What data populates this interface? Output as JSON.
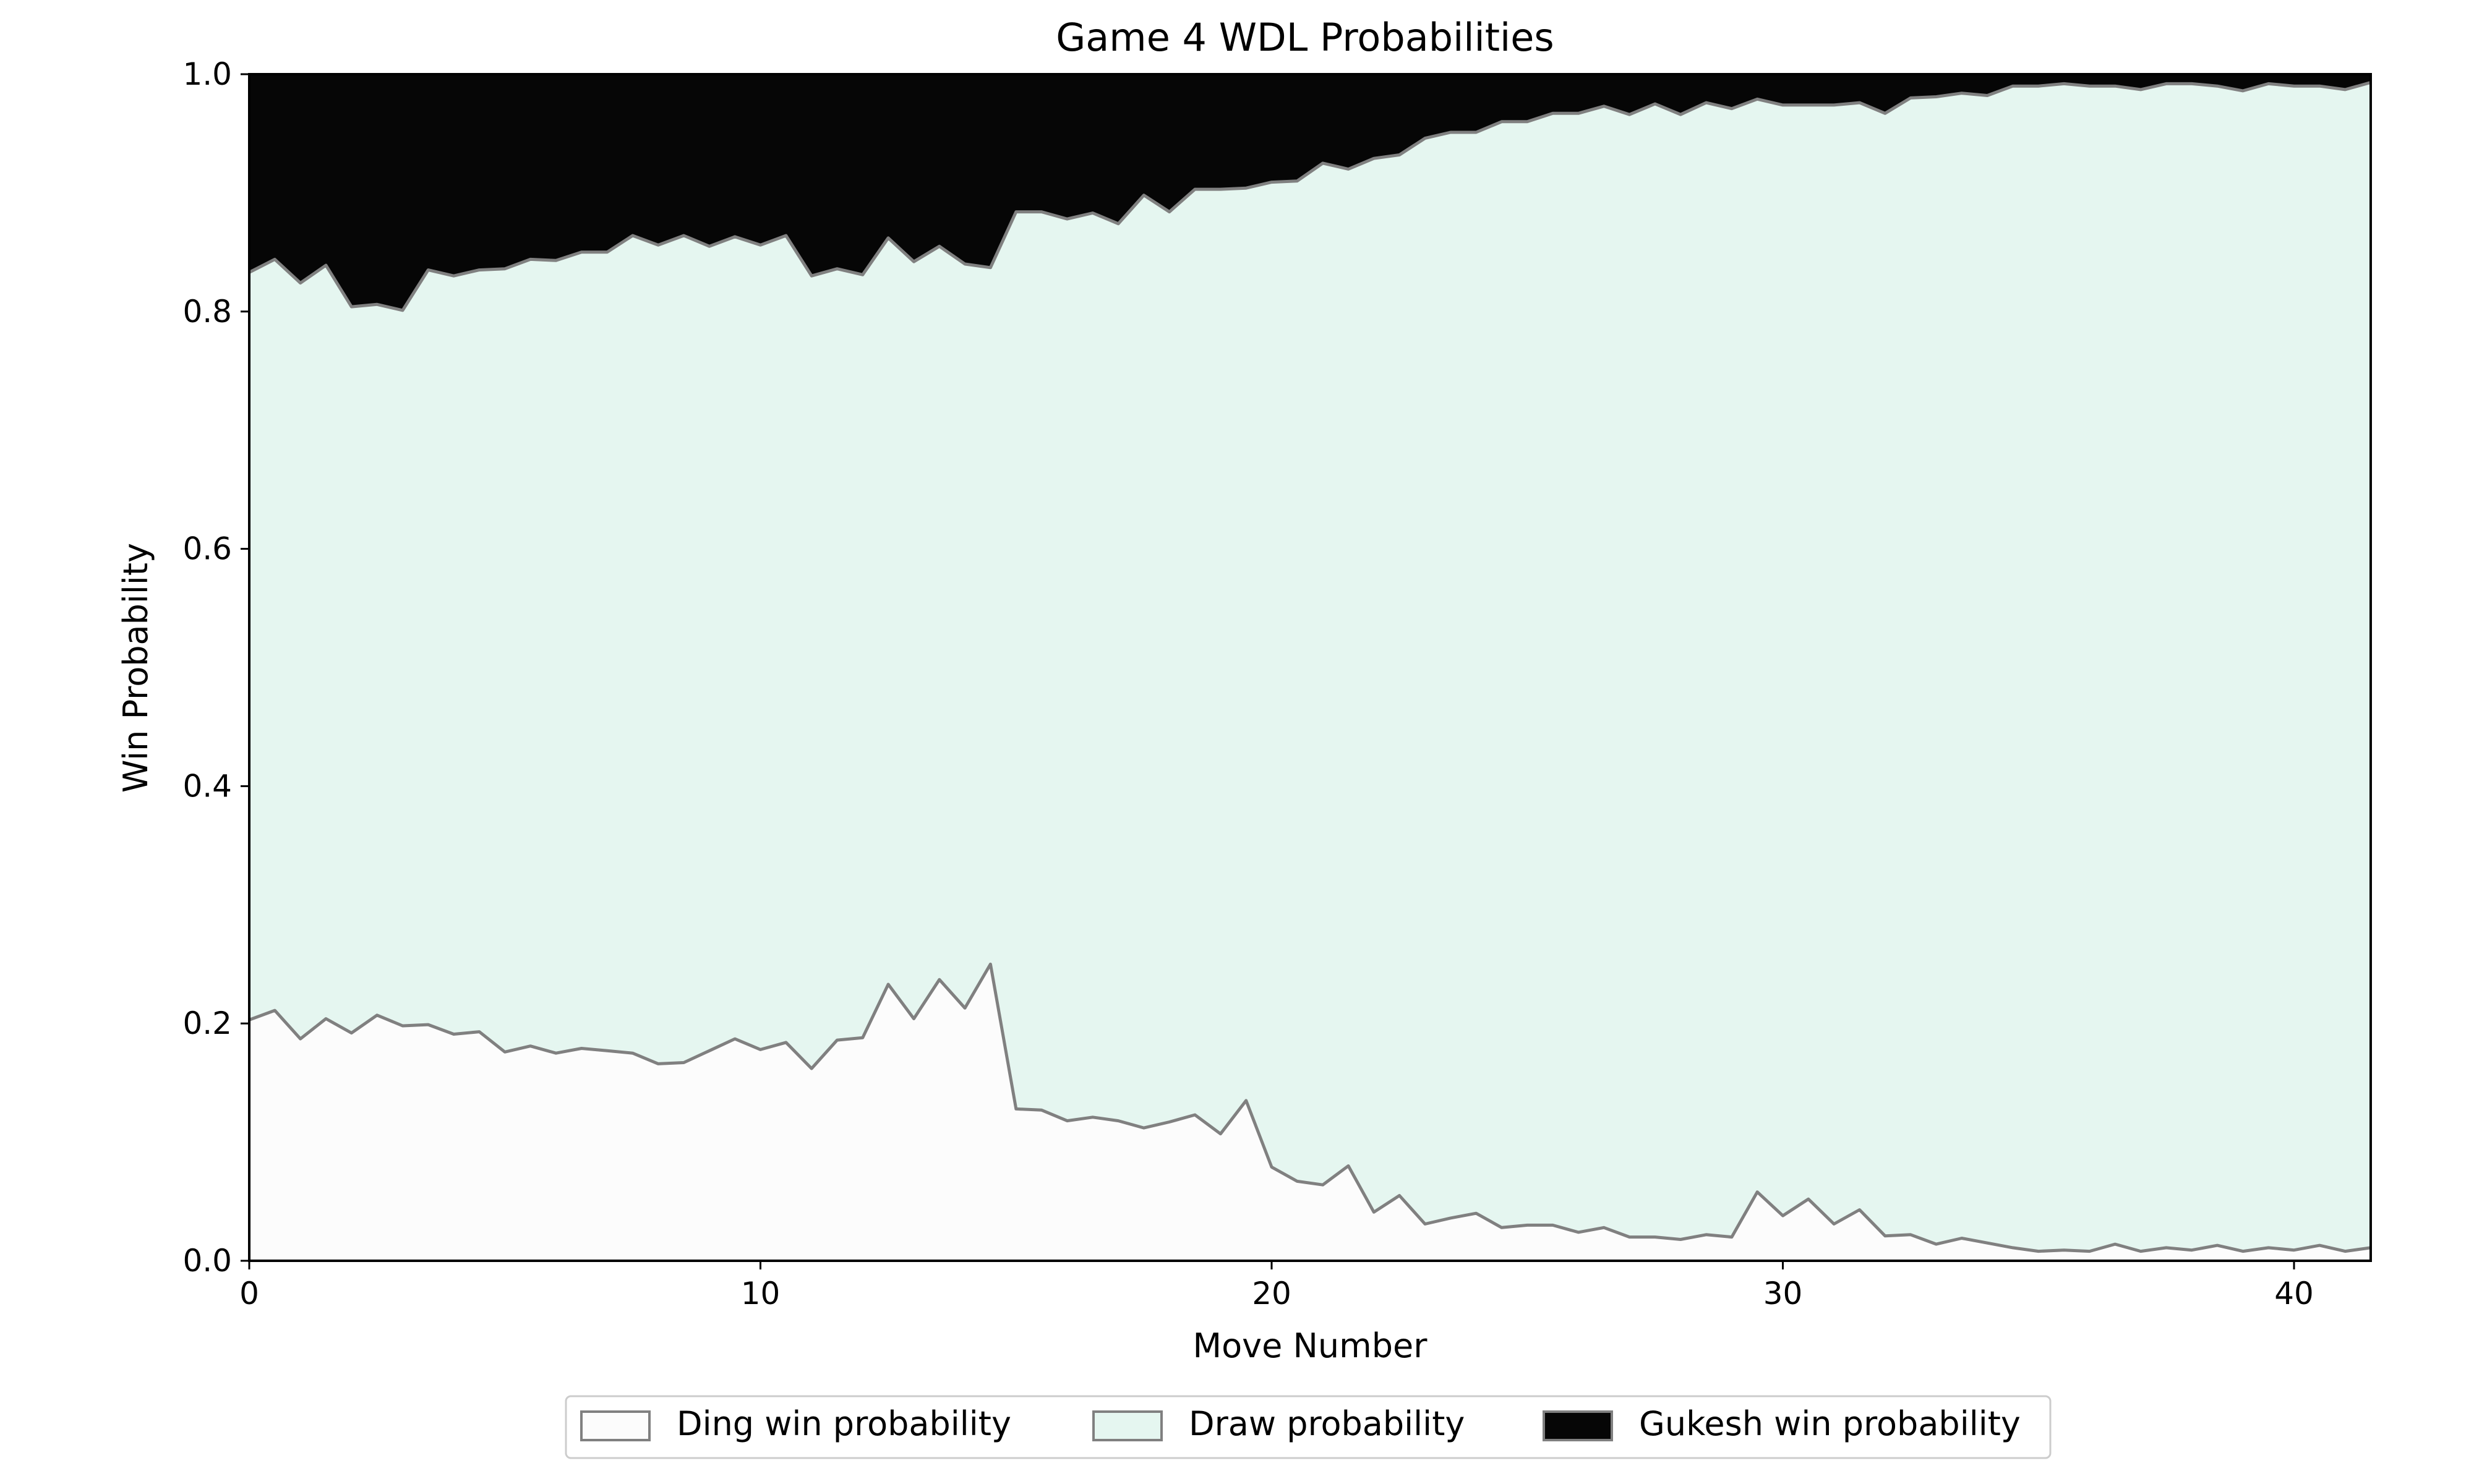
{
  "chart_data": {
    "type": "area",
    "stacked": true,
    "title": "Game 4 WDL Probabilities",
    "xlabel": "Move Number",
    "ylabel": "Win Probability",
    "xlim": [
      0,
      41.5
    ],
    "ylim": [
      0,
      1
    ],
    "xticks": [
      "0",
      "10",
      "20",
      "30",
      "40"
    ],
    "yticks": [
      "0.0",
      "0.2",
      "0.4",
      "0.6",
      "0.8",
      "1.0"
    ],
    "grid": false,
    "legend_position": "bottom-center",
    "x": [
      0,
      0.5,
      1,
      1.5,
      2,
      2.5,
      3,
      3.5,
      4,
      4.5,
      5,
      5.5,
      6,
      6.5,
      7,
      7.5,
      8,
      8.5,
      9,
      9.5,
      10,
      10.5,
      11,
      11.5,
      12,
      12.5,
      13,
      13.5,
      14,
      14.5,
      15,
      15.5,
      16,
      16.5,
      17,
      17.5,
      18,
      18.5,
      19,
      19.5,
      20,
      20.5,
      21,
      21.5,
      22,
      22.5,
      23,
      23.5,
      24,
      24.5,
      25,
      25.5,
      26,
      26.5,
      27,
      27.5,
      28,
      28.5,
      29,
      29.5,
      30,
      30.5,
      31,
      31.5,
      32,
      32.5,
      33,
      33.5,
      34,
      34.5,
      35,
      35.5,
      36,
      36.5,
      37,
      37.5,
      38,
      38.5,
      39,
      39.5,
      40,
      40.5,
      41,
      41.5
    ],
    "series": [
      {
        "name": "Ding win probability",
        "color": "#fcfcfc",
        "edge_color": "#808080",
        "values": [
          0.203,
          0.211,
          0.187,
          0.204,
          0.192,
          0.207,
          0.198,
          0.199,
          0.191,
          0.193,
          0.176,
          0.181,
          0.175,
          0.179,
          0.177,
          0.175,
          0.166,
          0.167,
          0.177,
          0.187,
          0.178,
          0.184,
          0.162,
          0.186,
          0.188,
          0.233,
          0.204,
          0.237,
          0.213,
          0.25,
          0.128,
          0.127,
          0.118,
          0.121,
          0.118,
          0.112,
          0.117,
          0.123,
          0.107,
          0.135,
          0.079,
          0.067,
          0.064,
          0.08,
          0.041,
          0.055,
          0.031,
          0.036,
          0.04,
          0.028,
          0.03,
          0.03,
          0.024,
          0.028,
          0.02,
          0.02,
          0.018,
          0.022,
          0.02,
          0.058,
          0.038,
          0.052,
          0.031,
          0.043,
          0.021,
          0.022,
          0.014,
          0.019,
          0.015,
          0.011,
          0.008,
          0.009,
          0.008,
          0.014,
          0.008,
          0.011,
          0.009,
          0.013,
          0.008,
          0.011,
          0.009,
          0.013,
          0.008,
          0.011
        ]
      },
      {
        "name": "Draw probability",
        "color": "#e5f6f0",
        "edge_color": "#808080",
        "values": [
          0.63,
          0.633,
          0.637,
          0.635,
          0.612,
          0.599,
          0.603,
          0.636,
          0.639,
          0.642,
          0.66,
          0.663,
          0.668,
          0.671,
          0.673,
          0.689,
          0.69,
          0.697,
          0.678,
          0.676,
          0.678,
          0.68,
          0.668,
          0.65,
          0.643,
          0.629,
          0.638,
          0.618,
          0.627,
          0.587,
          0.756,
          0.757,
          0.76,
          0.762,
          0.756,
          0.786,
          0.767,
          0.78,
          0.796,
          0.769,
          0.83,
          0.843,
          0.861,
          0.84,
          0.888,
          0.877,
          0.915,
          0.915,
          0.911,
          0.932,
          0.93,
          0.937,
          0.943,
          0.945,
          0.946,
          0.955,
          0.948,
          0.954,
          0.951,
          0.921,
          0.936,
          0.922,
          0.943,
          0.933,
          0.946,
          0.958,
          0.967,
          0.965,
          0.967,
          0.979,
          0.982,
          0.983,
          0.982,
          0.976,
          0.979,
          0.981,
          0.983,
          0.977,
          0.978,
          0.981,
          0.981,
          0.977,
          0.979,
          0.982
        ]
      },
      {
        "name": "Gukesh win probability",
        "color": "#060606",
        "edge_color": "#808080",
        "values": [
          0.167,
          0.156,
          0.176,
          0.161,
          0.196,
          0.194,
          0.199,
          0.165,
          0.17,
          0.165,
          0.164,
          0.156,
          0.157,
          0.15,
          0.15,
          0.136,
          0.144,
          0.136,
          0.145,
          0.137,
          0.144,
          0.136,
          0.17,
          0.164,
          0.169,
          0.138,
          0.158,
          0.145,
          0.16,
          0.163,
          0.116,
          0.116,
          0.122,
          0.117,
          0.126,
          0.102,
          0.116,
          0.097,
          0.097,
          0.096,
          0.091,
          0.09,
          0.075,
          0.08,
          0.071,
          0.068,
          0.054,
          0.049,
          0.049,
          0.04,
          0.04,
          0.033,
          0.033,
          0.027,
          0.034,
          0.025,
          0.034,
          0.024,
          0.029,
          0.021,
          0.026,
          0.026,
          0.026,
          0.024,
          0.033,
          0.02,
          0.019,
          0.016,
          0.018,
          0.01,
          0.01,
          0.008,
          0.01,
          0.01,
          0.013,
          0.008,
          0.008,
          0.01,
          0.014,
          0.008,
          0.01,
          0.01,
          0.013,
          0.007
        ]
      }
    ]
  }
}
